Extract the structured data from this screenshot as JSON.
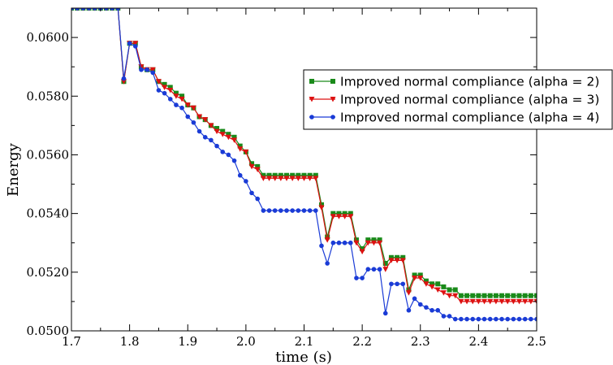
{
  "chart_data": {
    "type": "line",
    "xlabel": "time (s)",
    "ylabel": "Energy",
    "xlim": [
      1.7,
      2.5
    ],
    "ylim": [
      0.05,
      0.061
    ],
    "xticks": [
      "1.7",
      "1.8",
      "1.9",
      "2.0",
      "2.1",
      "2.2",
      "2.3",
      "2.4",
      "2.5"
    ],
    "xtick_values": [
      1.7,
      1.8,
      1.9,
      2.0,
      2.1,
      2.2,
      2.3,
      2.4,
      2.5
    ],
    "yticks": [
      "0.0500",
      "0.0520",
      "0.0540",
      "0.0560",
      "0.0580",
      "0.0600"
    ],
    "ytick_values": [
      0.05,
      0.052,
      0.054,
      0.056,
      0.058,
      0.06
    ],
    "grid": false,
    "legend_position": "top-right",
    "series": [
      {
        "name": "Improved normal compliance (alpha = 2)",
        "color": "#1a8a1a",
        "marker": "square",
        "points": [
          [
            1.7,
            0.061
          ],
          [
            1.71,
            0.061
          ],
          [
            1.72,
            0.061
          ],
          [
            1.73,
            0.061
          ],
          [
            1.74,
            0.061
          ],
          [
            1.75,
            0.061
          ],
          [
            1.76,
            0.061
          ],
          [
            1.77,
            0.061
          ],
          [
            1.78,
            0.061
          ],
          [
            1.79,
            0.0585
          ],
          [
            1.8,
            0.0598
          ],
          [
            1.81,
            0.0598
          ],
          [
            1.82,
            0.059
          ],
          [
            1.83,
            0.0589
          ],
          [
            1.84,
            0.0589
          ],
          [
            1.85,
            0.0585
          ],
          [
            1.86,
            0.0584
          ],
          [
            1.87,
            0.0583
          ],
          [
            1.88,
            0.0581
          ],
          [
            1.89,
            0.058
          ],
          [
            1.9,
            0.0577
          ],
          [
            1.91,
            0.0576
          ],
          [
            1.92,
            0.0573
          ],
          [
            1.93,
            0.0572
          ],
          [
            1.94,
            0.057
          ],
          [
            1.95,
            0.0569
          ],
          [
            1.96,
            0.0568
          ],
          [
            1.97,
            0.0567
          ],
          [
            1.98,
            0.0566
          ],
          [
            1.99,
            0.0563
          ],
          [
            2.0,
            0.0561
          ],
          [
            2.01,
            0.0557
          ],
          [
            2.02,
            0.0556
          ],
          [
            2.03,
            0.0553
          ],
          [
            2.04,
            0.0553
          ],
          [
            2.05,
            0.0553
          ],
          [
            2.06,
            0.0553
          ],
          [
            2.07,
            0.0553
          ],
          [
            2.08,
            0.0553
          ],
          [
            2.09,
            0.0553
          ],
          [
            2.1,
            0.0553
          ],
          [
            2.11,
            0.0553
          ],
          [
            2.12,
            0.0553
          ],
          [
            2.13,
            0.0543
          ],
          [
            2.14,
            0.0532
          ],
          [
            2.15,
            0.054
          ],
          [
            2.16,
            0.054
          ],
          [
            2.17,
            0.054
          ],
          [
            2.18,
            0.054
          ],
          [
            2.19,
            0.0531
          ],
          [
            2.2,
            0.0528
          ],
          [
            2.21,
            0.0531
          ],
          [
            2.22,
            0.0531
          ],
          [
            2.23,
            0.0531
          ],
          [
            2.24,
            0.0523
          ],
          [
            2.25,
            0.0525
          ],
          [
            2.26,
            0.0525
          ],
          [
            2.27,
            0.0525
          ],
          [
            2.28,
            0.0514
          ],
          [
            2.29,
            0.0519
          ],
          [
            2.3,
            0.0519
          ],
          [
            2.31,
            0.0517
          ],
          [
            2.32,
            0.0516
          ],
          [
            2.33,
            0.0516
          ],
          [
            2.34,
            0.0515
          ],
          [
            2.35,
            0.0514
          ],
          [
            2.36,
            0.0514
          ],
          [
            2.37,
            0.0512
          ],
          [
            2.38,
            0.0512
          ],
          [
            2.39,
            0.0512
          ],
          [
            2.4,
            0.0512
          ],
          [
            2.41,
            0.0512
          ],
          [
            2.42,
            0.0512
          ],
          [
            2.43,
            0.0512
          ],
          [
            2.44,
            0.0512
          ],
          [
            2.45,
            0.0512
          ],
          [
            2.46,
            0.0512
          ],
          [
            2.47,
            0.0512
          ],
          [
            2.48,
            0.0512
          ],
          [
            2.49,
            0.0512
          ],
          [
            2.5,
            0.0512
          ]
        ]
      },
      {
        "name": "Improved normal compliance (alpha = 3)",
        "color": "#dd1111",
        "marker": "triangle-down",
        "points": [
          [
            1.7,
            0.061
          ],
          [
            1.71,
            0.061
          ],
          [
            1.72,
            0.061
          ],
          [
            1.73,
            0.061
          ],
          [
            1.74,
            0.061
          ],
          [
            1.75,
            0.061
          ],
          [
            1.76,
            0.061
          ],
          [
            1.77,
            0.061
          ],
          [
            1.78,
            0.061
          ],
          [
            1.79,
            0.0585
          ],
          [
            1.8,
            0.0598
          ],
          [
            1.81,
            0.0598
          ],
          [
            1.82,
            0.059
          ],
          [
            1.83,
            0.0589
          ],
          [
            1.84,
            0.0589
          ],
          [
            1.85,
            0.0585
          ],
          [
            1.86,
            0.0583
          ],
          [
            1.87,
            0.0582
          ],
          [
            1.88,
            0.058
          ],
          [
            1.89,
            0.0579
          ],
          [
            1.9,
            0.0577
          ],
          [
            1.91,
            0.0576
          ],
          [
            1.92,
            0.0573
          ],
          [
            1.93,
            0.0572
          ],
          [
            1.94,
            0.057
          ],
          [
            1.95,
            0.0568
          ],
          [
            1.96,
            0.0567
          ],
          [
            1.97,
            0.0566
          ],
          [
            1.98,
            0.0565
          ],
          [
            1.99,
            0.0562
          ],
          [
            2.0,
            0.0561
          ],
          [
            2.01,
            0.0556
          ],
          [
            2.02,
            0.0555
          ],
          [
            2.03,
            0.0552
          ],
          [
            2.04,
            0.0552
          ],
          [
            2.05,
            0.0552
          ],
          [
            2.06,
            0.0552
          ],
          [
            2.07,
            0.0552
          ],
          [
            2.08,
            0.0552
          ],
          [
            2.09,
            0.0552
          ],
          [
            2.1,
            0.0552
          ],
          [
            2.11,
            0.0552
          ],
          [
            2.12,
            0.0552
          ],
          [
            2.13,
            0.0542
          ],
          [
            2.14,
            0.0531
          ],
          [
            2.15,
            0.0539
          ],
          [
            2.16,
            0.0539
          ],
          [
            2.17,
            0.0539
          ],
          [
            2.18,
            0.0539
          ],
          [
            2.19,
            0.053
          ],
          [
            2.2,
            0.0527
          ],
          [
            2.21,
            0.053
          ],
          [
            2.22,
            0.053
          ],
          [
            2.23,
            0.053
          ],
          [
            2.24,
            0.0521
          ],
          [
            2.25,
            0.0524
          ],
          [
            2.26,
            0.0524
          ],
          [
            2.27,
            0.0524
          ],
          [
            2.28,
            0.0513
          ],
          [
            2.29,
            0.0518
          ],
          [
            2.3,
            0.0518
          ],
          [
            2.31,
            0.0516
          ],
          [
            2.32,
            0.0515
          ],
          [
            2.33,
            0.0514
          ],
          [
            2.34,
            0.0513
          ],
          [
            2.35,
            0.0512
          ],
          [
            2.36,
            0.0512
          ],
          [
            2.37,
            0.051
          ],
          [
            2.38,
            0.051
          ],
          [
            2.39,
            0.051
          ],
          [
            2.4,
            0.051
          ],
          [
            2.41,
            0.051
          ],
          [
            2.42,
            0.051
          ],
          [
            2.43,
            0.051
          ],
          [
            2.44,
            0.051
          ],
          [
            2.45,
            0.051
          ],
          [
            2.46,
            0.051
          ],
          [
            2.47,
            0.051
          ],
          [
            2.48,
            0.051
          ],
          [
            2.49,
            0.051
          ],
          [
            2.5,
            0.051
          ]
        ]
      },
      {
        "name": "Improved normal compliance (alpha = 4)",
        "color": "#1a3bd6",
        "marker": "circle",
        "points": [
          [
            1.7,
            0.061
          ],
          [
            1.71,
            0.061
          ],
          [
            1.72,
            0.061
          ],
          [
            1.73,
            0.061
          ],
          [
            1.74,
            0.061
          ],
          [
            1.75,
            0.061
          ],
          [
            1.76,
            0.061
          ],
          [
            1.77,
            0.061
          ],
          [
            1.78,
            0.061
          ],
          [
            1.79,
            0.0586
          ],
          [
            1.8,
            0.0598
          ],
          [
            1.81,
            0.0597
          ],
          [
            1.82,
            0.0589
          ],
          [
            1.83,
            0.0589
          ],
          [
            1.84,
            0.0588
          ],
          [
            1.85,
            0.0582
          ],
          [
            1.86,
            0.0581
          ],
          [
            1.87,
            0.0579
          ],
          [
            1.88,
            0.0577
          ],
          [
            1.89,
            0.0576
          ],
          [
            1.9,
            0.0573
          ],
          [
            1.91,
            0.0571
          ],
          [
            1.92,
            0.0568
          ],
          [
            1.93,
            0.0566
          ],
          [
            1.94,
            0.0565
          ],
          [
            1.95,
            0.0563
          ],
          [
            1.96,
            0.0561
          ],
          [
            1.97,
            0.056
          ],
          [
            1.98,
            0.0558
          ],
          [
            1.99,
            0.0553
          ],
          [
            2.0,
            0.0551
          ],
          [
            2.01,
            0.0547
          ],
          [
            2.02,
            0.0545
          ],
          [
            2.03,
            0.0541
          ],
          [
            2.04,
            0.0541
          ],
          [
            2.05,
            0.0541
          ],
          [
            2.06,
            0.0541
          ],
          [
            2.07,
            0.0541
          ],
          [
            2.08,
            0.0541
          ],
          [
            2.09,
            0.0541
          ],
          [
            2.1,
            0.0541
          ],
          [
            2.11,
            0.0541
          ],
          [
            2.12,
            0.0541
          ],
          [
            2.13,
            0.0529
          ],
          [
            2.14,
            0.0523
          ],
          [
            2.15,
            0.053
          ],
          [
            2.16,
            0.053
          ],
          [
            2.17,
            0.053
          ],
          [
            2.18,
            0.053
          ],
          [
            2.19,
            0.0518
          ],
          [
            2.2,
            0.0518
          ],
          [
            2.21,
            0.0521
          ],
          [
            2.22,
            0.0521
          ],
          [
            2.23,
            0.0521
          ],
          [
            2.24,
            0.0506
          ],
          [
            2.25,
            0.0516
          ],
          [
            2.26,
            0.0516
          ],
          [
            2.27,
            0.0516
          ],
          [
            2.28,
            0.0507
          ],
          [
            2.29,
            0.0511
          ],
          [
            2.3,
            0.0509
          ],
          [
            2.31,
            0.0508
          ],
          [
            2.32,
            0.0507
          ],
          [
            2.33,
            0.0507
          ],
          [
            2.34,
            0.0505
          ],
          [
            2.35,
            0.0505
          ],
          [
            2.36,
            0.0504
          ],
          [
            2.37,
            0.0504
          ],
          [
            2.38,
            0.0504
          ],
          [
            2.39,
            0.0504
          ],
          [
            2.4,
            0.0504
          ],
          [
            2.41,
            0.0504
          ],
          [
            2.42,
            0.0504
          ],
          [
            2.43,
            0.0504
          ],
          [
            2.44,
            0.0504
          ],
          [
            2.45,
            0.0504
          ],
          [
            2.46,
            0.0504
          ],
          [
            2.47,
            0.0504
          ],
          [
            2.48,
            0.0504
          ],
          [
            2.49,
            0.0504
          ],
          [
            2.5,
            0.0504
          ]
        ]
      }
    ]
  }
}
